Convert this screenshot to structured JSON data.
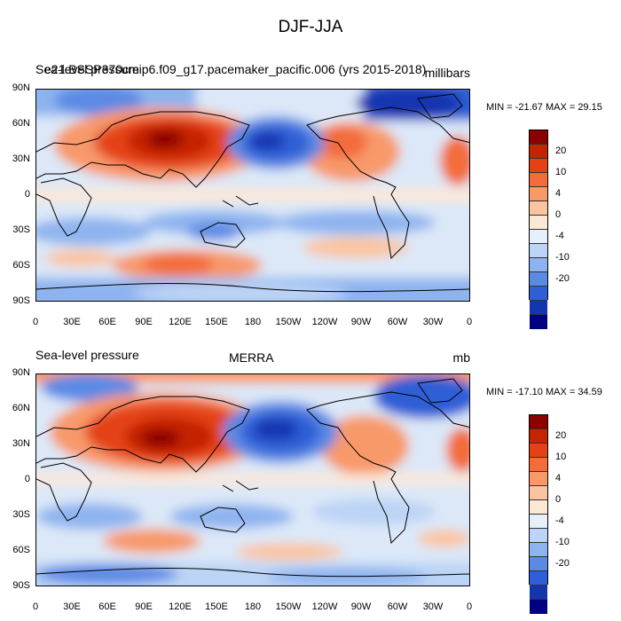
{
  "title": "DJF-JJA",
  "lat_ticks": [
    "90N",
    "60N",
    "30N",
    "0",
    "30S",
    "60S",
    "90S"
  ],
  "lon_ticks": [
    "0",
    "30E",
    "60E",
    "90E",
    "120E",
    "150E",
    "180",
    "150W",
    "120W",
    "90W",
    "60W",
    "30W",
    "0"
  ],
  "colorbar": {
    "colors": [
      "#8b0000",
      "#c42400",
      "#e44212",
      "#f36c3a",
      "#f8996a",
      "#fbc4a0",
      "#fde8d6",
      "#e6f0fb",
      "#bcd4f5",
      "#8eb4ef",
      "#5b8ae4",
      "#2f5fd6",
      "#1336b0",
      "#000080"
    ],
    "labels": [
      "20",
      "10",
      "4",
      "0",
      "-4",
      "-10",
      "-20"
    ]
  },
  "panels": [
    {
      "left": "Sea-level pressure",
      "center": "e21.BSSP370cmip6.f09_g17.pacemaker_pacific.006 (yrs 2015-2018)",
      "right": "millibars",
      "minmax": "MIN = -21.67 MAX =  29.15"
    },
    {
      "left": "Sea-level pressure",
      "center": "MERRA",
      "right": "mb",
      "minmax": "MIN = -17.10 MAX =  34.59"
    }
  ]
}
